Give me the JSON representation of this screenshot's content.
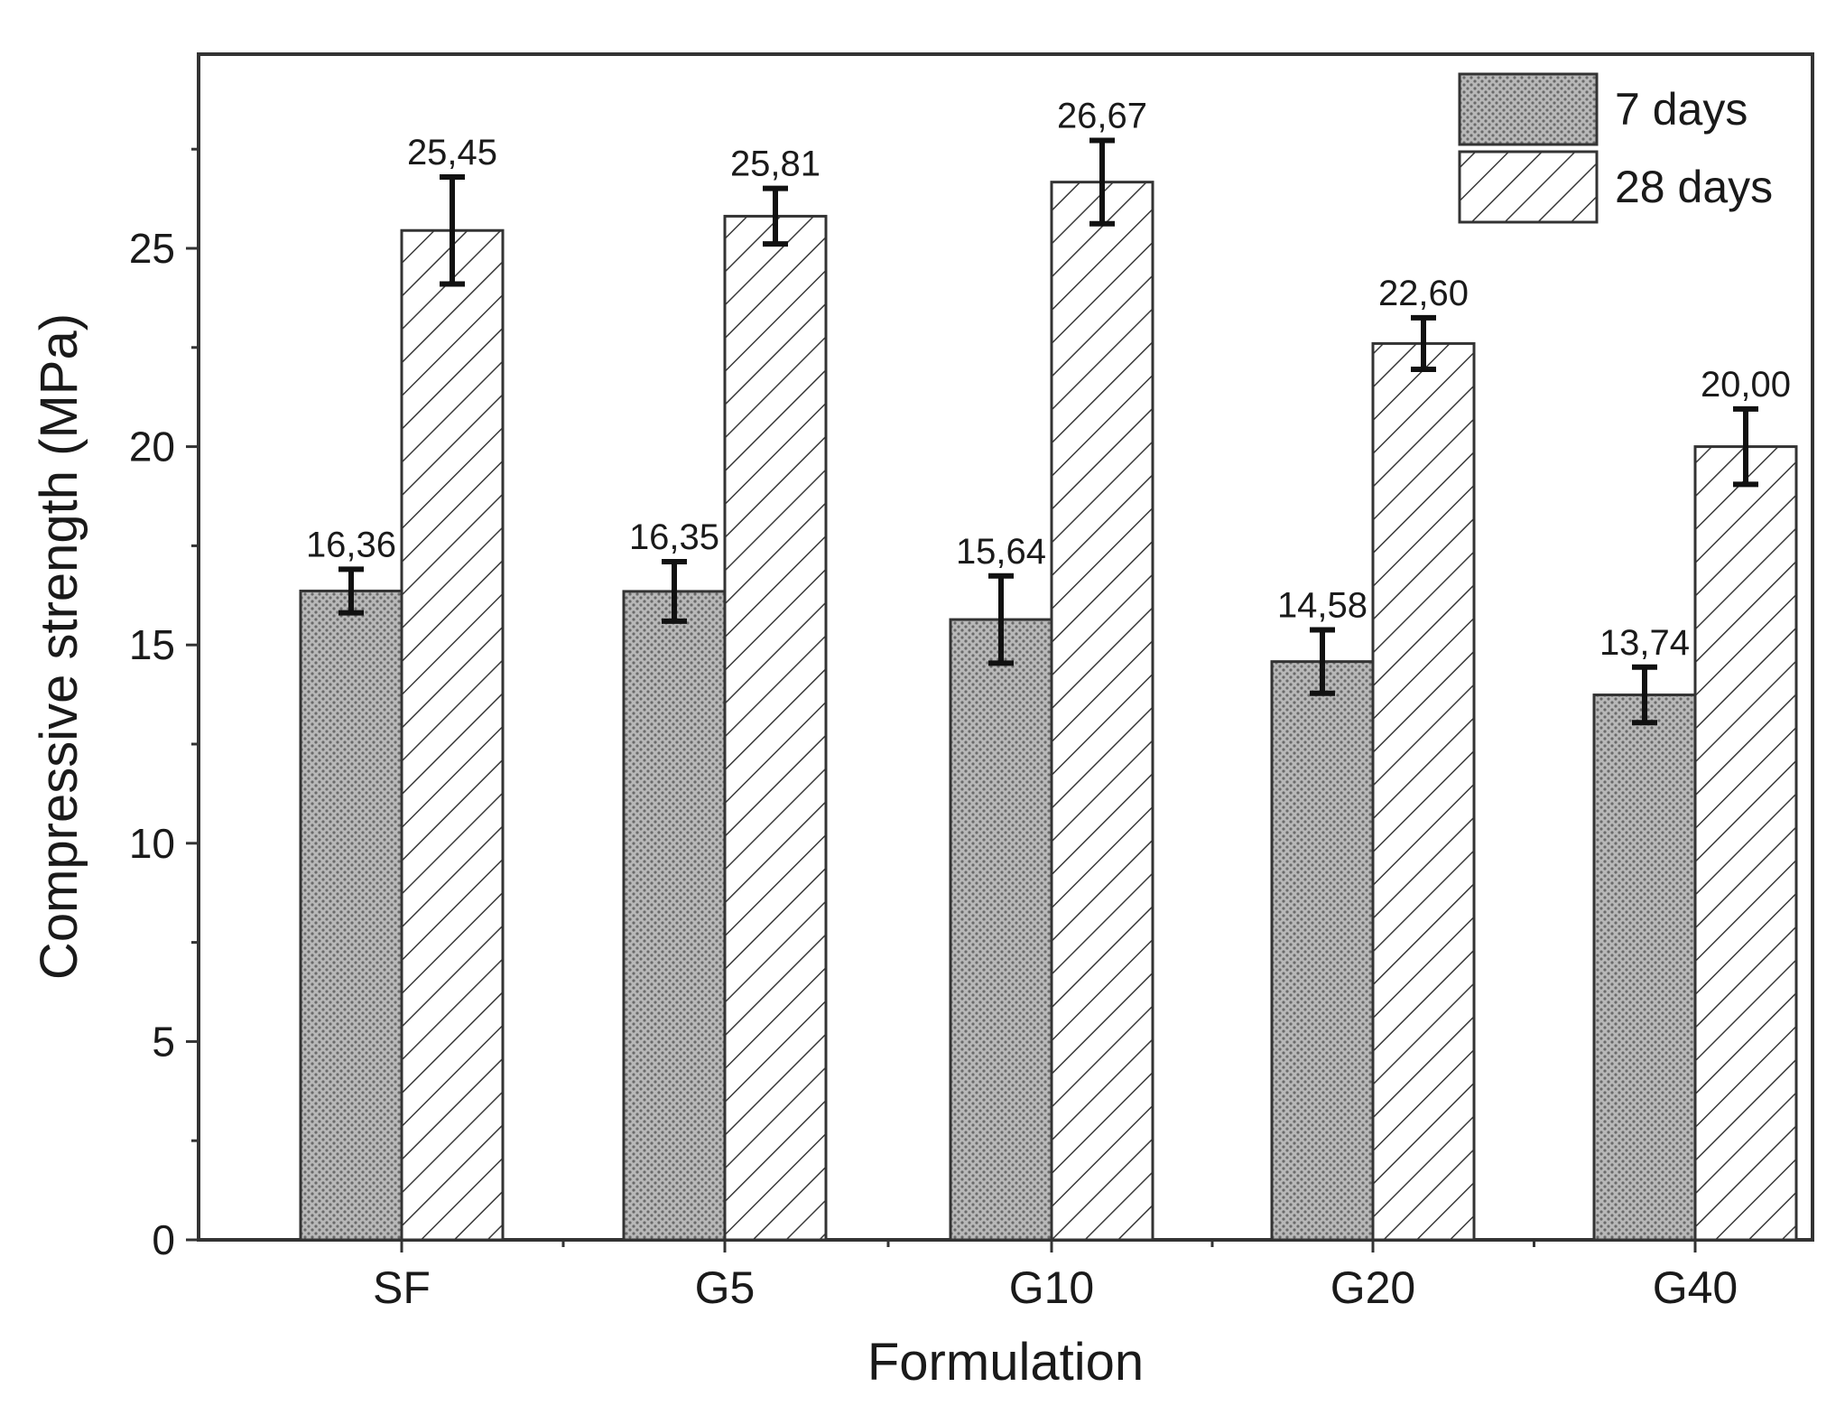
{
  "chart_data": {
    "type": "bar",
    "xlabel": "Formulation",
    "ylabel": "Compressive strength (MPa)",
    "ylim": [
      0,
      30
    ],
    "yticks": [
      0,
      5,
      10,
      15,
      20,
      25
    ],
    "categories": [
      "SF",
      "G5",
      "G10",
      "G20",
      "G40"
    ],
    "legend_position": "top-right",
    "grid": false,
    "series": [
      {
        "name": "7 days",
        "pattern": "crosshatch-dots",
        "fill_color": "#b0b0b0",
        "values": [
          16.36,
          16.35,
          15.64,
          14.58,
          13.74
        ],
        "value_labels": [
          "16,36",
          "16,35",
          "15,64",
          "14,58",
          "13,74"
        ],
        "error": [
          0.55,
          0.75,
          1.1,
          0.8,
          0.7
        ]
      },
      {
        "name": "28 days",
        "pattern": "diagonal-hatch",
        "fill_color": "#ffffff",
        "values": [
          25.45,
          25.81,
          26.67,
          22.6,
          20.0
        ],
        "value_labels": [
          "25,45",
          "25,81",
          "26,67",
          "22,60",
          "20,00"
        ],
        "error": [
          1.35,
          0.7,
          1.05,
          0.65,
          0.95
        ]
      }
    ]
  }
}
